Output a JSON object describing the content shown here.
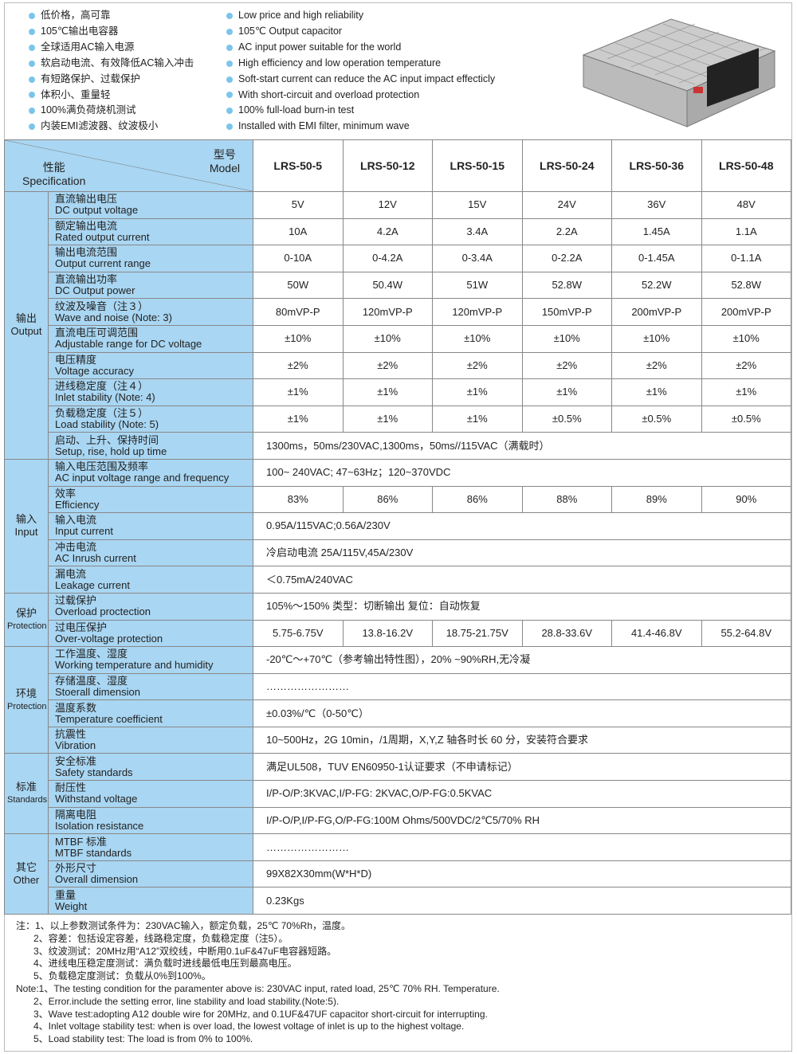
{
  "features_cn": [
    "低价格，高可靠",
    "105℃输出电容器",
    "全球适用AC输入电源",
    "软启动电流、有效降低AC输入冲击",
    "有短路保护、过载保护",
    "体积小、重量轻",
    "100%满负荷烧机测试",
    "内装EMI滤波器、纹波极小"
  ],
  "features_en": [
    "Low price and high reliability",
    "105℃ Output capacitor",
    "AC input power suitable for the world",
    "High efficiency and low operation temperature",
    "Soft-start current can reduce the AC input impact effecticly",
    "With short-circuit and overload protection",
    "100% full-load burn-in test",
    "Installed with EMI filter, minimum wave"
  ],
  "header": {
    "model_cn": "型号",
    "model_en": "Model",
    "spec_cn": "性能",
    "spec_en": "Specification",
    "models": [
      "LRS-50-5",
      "LRS-50-12",
      "LRS-50-15",
      "LRS-50-24",
      "LRS-50-36",
      "LRS-50-48"
    ]
  },
  "groups": [
    {
      "cn": "输出",
      "en": "Output",
      "rows": [
        {
          "cn": "直流输出电压",
          "en": "DC output voltage",
          "values": [
            "5V",
            "12V",
            "15V",
            "24V",
            "36V",
            "48V"
          ]
        },
        {
          "cn": "额定输出电流",
          "en": "Rated output current",
          "values": [
            "10A",
            "4.2A",
            "3.4A",
            "2.2A",
            "1.45A",
            "1.1A"
          ]
        },
        {
          "cn": "输出电流范围",
          "en": "Output current range",
          "values": [
            "0-10A",
            "0-4.2A",
            "0-3.4A",
            "0-2.2A",
            "0-1.45A",
            "0-1.1A"
          ]
        },
        {
          "cn": "直流输出功率",
          "en": "DC Output power",
          "values": [
            "50W",
            "50.4W",
            "51W",
            "52.8W",
            "52.2W",
            "52.8W"
          ]
        },
        {
          "cn": "纹波及噪音（注３）",
          "en": "Wave and noise (Note: 3)",
          "values": [
            "80mVP-P",
            "120mVP-P",
            "120mVP-P",
            "150mVP-P",
            "200mVP-P",
            "200mVP-P"
          ]
        },
        {
          "cn": "直流电压可调范围",
          "en": "Adjustable range for DC voltage",
          "values": [
            "±10%",
            "±10%",
            "±10%",
            "±10%",
            "±10%",
            "±10%"
          ]
        },
        {
          "cn": "电压精度",
          "en": "Voltage accuracy",
          "values": [
            "±2%",
            "±2%",
            "±2%",
            "±2%",
            "±2%",
            "±2%"
          ]
        },
        {
          "cn": "进线稳定度（注４）",
          "en": "Inlet stability (Note: 4)",
          "values": [
            "±1%",
            "±1%",
            "±1%",
            "±1%",
            "±1%",
            "±1%"
          ]
        },
        {
          "cn": "负载稳定度（注５）",
          "en": "Load stability (Note: 5)",
          "values": [
            "±1%",
            "±1%",
            "±1%",
            "±0.5%",
            "±0.5%",
            "±0.5%"
          ]
        },
        {
          "cn": "启动、上升、保持时间",
          "en": "Setup, rise, hold up time",
          "text": "1300ms，50ms/230VAC,1300ms，50ms//115VAC（满载时）"
        }
      ]
    },
    {
      "cn": "输入",
      "en": "Input",
      "rows": [
        {
          "cn": "输入电压范围及频率",
          "en": "AC input voltage range and frequency",
          "text": "100~ 240VAC; 47~63Hz；120~370VDC"
        },
        {
          "cn": "效率",
          "en": "Efficiency",
          "values": [
            "83%",
            "86%",
            "86%",
            "88%",
            "89%",
            "90%"
          ]
        },
        {
          "cn": "输入电流",
          "en": "Input current",
          "text": "0.95A/115VAC;0.56A/230V"
        },
        {
          "cn": "冲击电流",
          "en": "AC Inrush current",
          "text": "冷启动电流 25A/115V,45A/230V"
        },
        {
          "cn": "漏电流",
          "en": "Leakage current",
          "text": "＜0.75mA/240VAC"
        }
      ]
    },
    {
      "cn": "保护",
      "en": "Protection",
      "rows": [
        {
          "cn": "过载保护",
          "en": "Overload proctection",
          "text": "105%～150%  类型：切断输出  复位：自动恢复"
        },
        {
          "cn": "过电压保护",
          "en": "Over-voltage protection",
          "values": [
            "5.75-6.75V",
            "13.8-16.2V",
            "18.75-21.75V",
            "28.8-33.6V",
            "41.4-46.8V",
            "55.2-64.8V"
          ]
        }
      ]
    },
    {
      "cn": "环境",
      "en": "Protection",
      "rows": [
        {
          "cn": "工作温度、湿度",
          "en": "Working temperature and humidity",
          "text": "-20℃～+70℃（参考输出特性图），20% ~90%RH,无冷凝"
        },
        {
          "cn": "存储温度、湿度",
          "en": "Stoerall dimension",
          "text": "……………………"
        },
        {
          "cn": "温度系数",
          "en": "Temperature coefficient",
          "text": "±0.03%/℃（0-50℃）"
        },
        {
          "cn": "抗震性",
          "en": "Vibration",
          "text": "10~500Hz，2G 10min，/1周期，X,Y,Z 轴各时长 60 分，安装符合要求"
        }
      ]
    },
    {
      "cn": "标准",
      "en": "Standards",
      "rows": [
        {
          "cn": "安全标准",
          "en": "Safety standards",
          "text": "满足UL508，TUV EN60950-1认证要求（不申请标记）"
        },
        {
          "cn": "耐压性",
          "en": "Withstand voltage",
          "text": "I/P-O/P:3KVAC,I/P-FG: 2KVAC,O/P-FG:0.5KVAC"
        },
        {
          "cn": "隔离电阻",
          "en": "Isolation resistance",
          "text": "I/P-O/P,I/P-FG,O/P-FG:100M Ohms/500VDC/2℃5/70% RH"
        }
      ]
    },
    {
      "cn": "其它",
      "en": "Other",
      "rows": [
        {
          "cn": "MTBF 标准",
          "en": "MTBF standards",
          "text": "……………………"
        },
        {
          "cn": "外形尺寸",
          "en": "Overall dimension",
          "text": "99X82X30mm(W*H*D)"
        },
        {
          "cn": "重量",
          "en": "Weight",
          "text": "0.23Kgs"
        }
      ]
    }
  ],
  "notes_cn": [
    "注：1、以上参数测试条件为：230VAC输入，额定负载，25℃ 70%Rh，温度。",
    "2、容差：包括设定容差，线路稳定度，负载稳定度（注5）。",
    "3、纹波测试：20MHz用“A12”双绞线，中断用0.1uF&47uF电容器短路。",
    "4、进线电压稳定度测试：满负载时进线最低电压到最高电压。",
    "5、负载稳定度测试：负载从0%到100%。"
  ],
  "notes_en": [
    "Note:1、The testing condition for the paramenter above is: 230VAC input, rated load, 25℃ 70% RH. Temperature.",
    "2、Error.include the setting error, line stability and load stability.(Note:5).",
    "3、Wave test:adopting  A12  double wire for 20MHz, and 0.1UF&47UF capacitor short-circuit for interrupting.",
    "4、Inlet voltage stability test: when is over load, the lowest voltage of inlet is up to the highest voltage.",
    "5、Load stability test: The load is from 0% to 100%."
  ]
}
